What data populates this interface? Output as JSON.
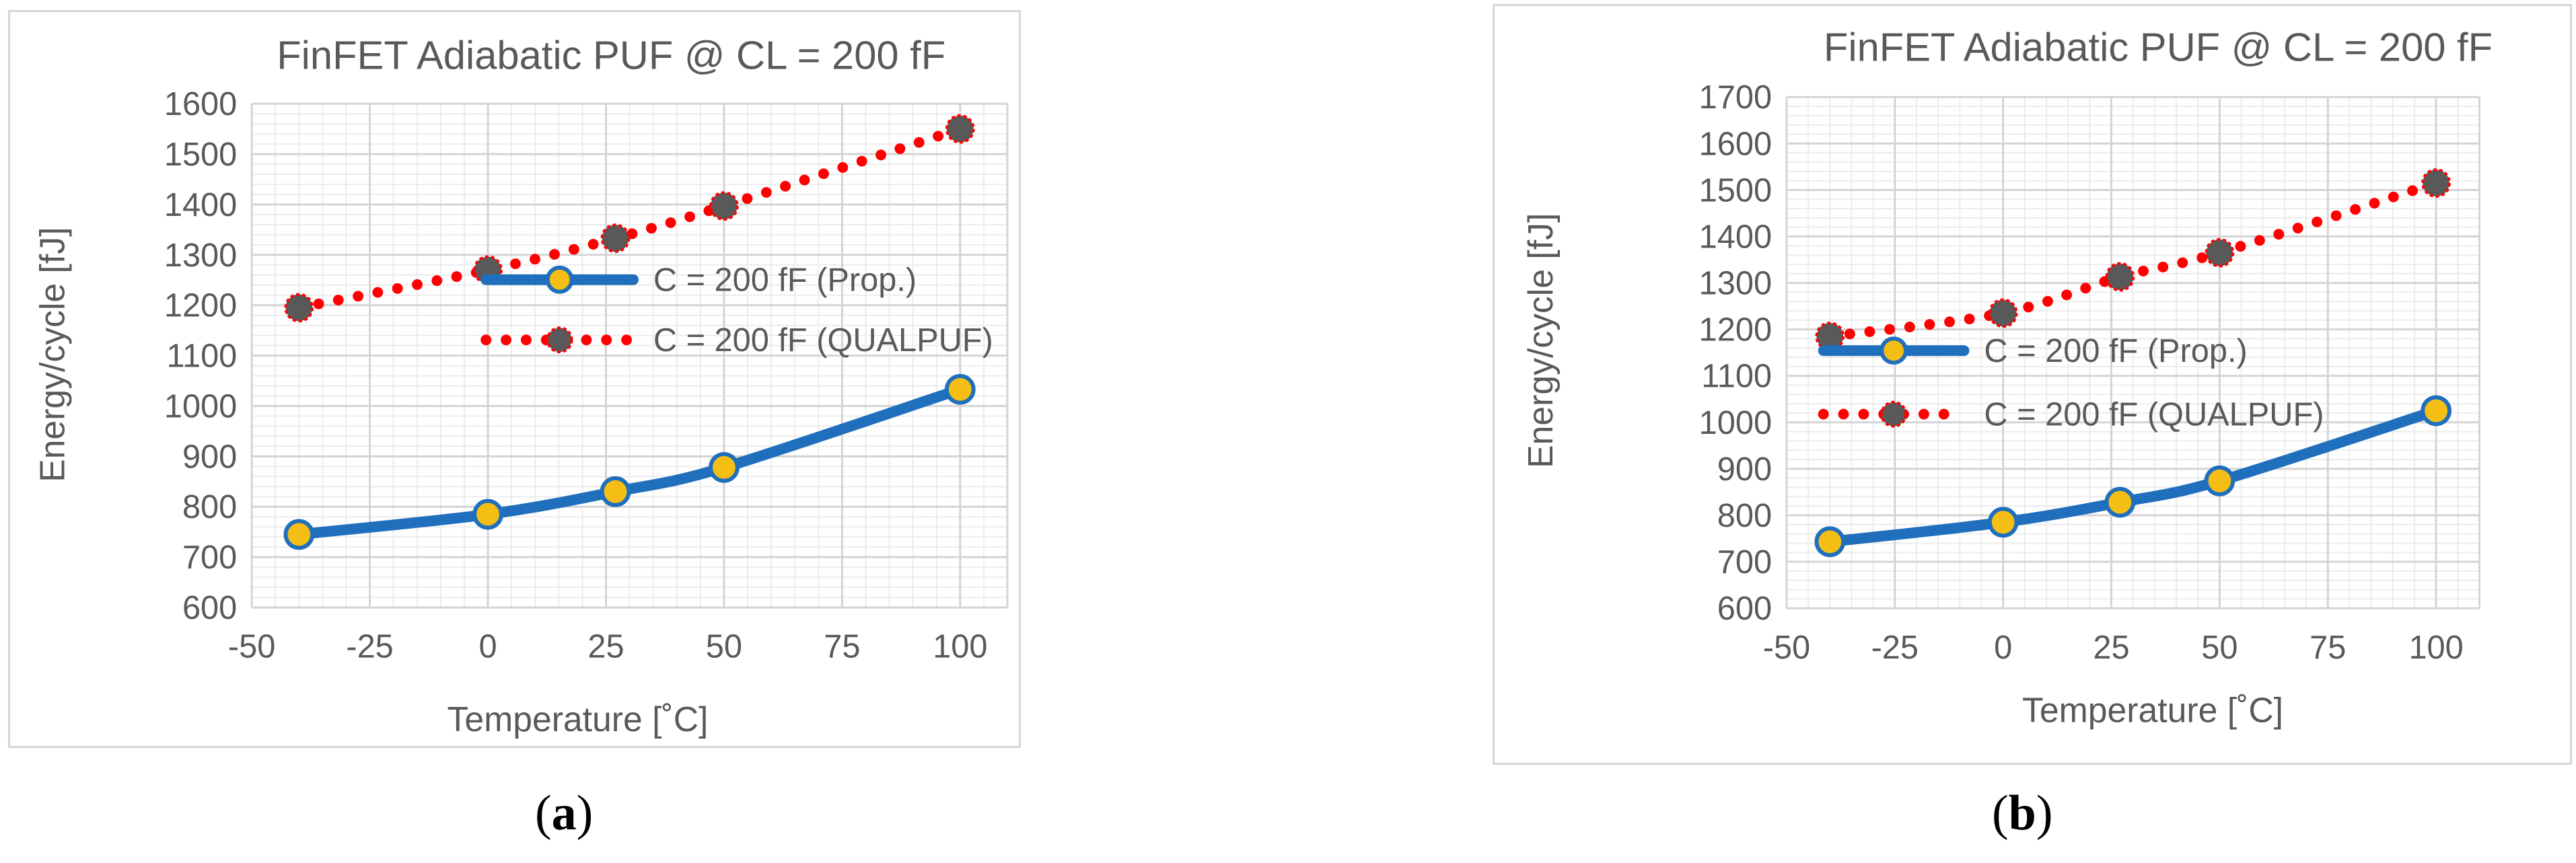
{
  "figure": {
    "caption_a": "a",
    "caption_b": "b"
  },
  "chart_data": [
    {
      "type": "line",
      "panel": "a",
      "title": "FinFET Adiabatic PUF @ CL = 200 fF",
      "xlabel": "Temperature [˚C]",
      "ylabel": "Energy/cycle [fJ]",
      "xlim": [
        -50,
        110
      ],
      "ylim": [
        600,
        1600
      ],
      "xticks": [
        -50,
        -25,
        0,
        25,
        50,
        75,
        100
      ],
      "yticks": [
        600,
        700,
        800,
        900,
        1000,
        1100,
        1200,
        1300,
        1400,
        1500,
        1600
      ],
      "grid": true,
      "legend_position": "center",
      "series": [
        {
          "name": "C = 200 fF (Prop.)",
          "style": "solid",
          "line_color": "#1f6fbd",
          "marker_color": "#f5be14",
          "x": [
            -40,
            0,
            27,
            50,
            100
          ],
          "y": [
            745,
            785,
            830,
            878,
            1033
          ]
        },
        {
          "name": "C = 200 fF (QUALPUF)",
          "style": "dotted",
          "line_color": "#ff0000",
          "marker_color": "#595959",
          "x": [
            -40,
            0,
            27,
            50,
            100
          ],
          "y": [
            1195,
            1270,
            1333,
            1397,
            1550
          ]
        }
      ]
    },
    {
      "type": "line",
      "panel": "b",
      "title": "FinFET Adiabatic PUF @ CL = 200 fF",
      "xlabel": "Temperature [˚C]",
      "ylabel": "Energy/cycle [fJ]",
      "xlim": [
        -50,
        110
      ],
      "ylim": [
        600,
        1700
      ],
      "xticks": [
        -50,
        -25,
        0,
        25,
        50,
        75,
        100
      ],
      "yticks": [
        600,
        700,
        800,
        900,
        1000,
        1100,
        1200,
        1300,
        1400,
        1500,
        1600,
        1700
      ],
      "grid": true,
      "legend_position": "center-left",
      "series": [
        {
          "name": "C = 200 fF (Prop.)",
          "style": "solid",
          "line_color": "#1f6fbd",
          "marker_color": "#f5be14",
          "x": [
            -40,
            0,
            27,
            50,
            100
          ],
          "y": [
            743,
            785,
            828,
            874,
            1025
          ]
        },
        {
          "name": "C = 200 fF (QUALPUF)",
          "style": "dotted",
          "line_color": "#ff0000",
          "marker_color": "#595959",
          "x": [
            -40,
            0,
            27,
            50,
            100
          ],
          "y": [
            1185,
            1235,
            1313,
            1365,
            1515
          ]
        }
      ]
    }
  ]
}
